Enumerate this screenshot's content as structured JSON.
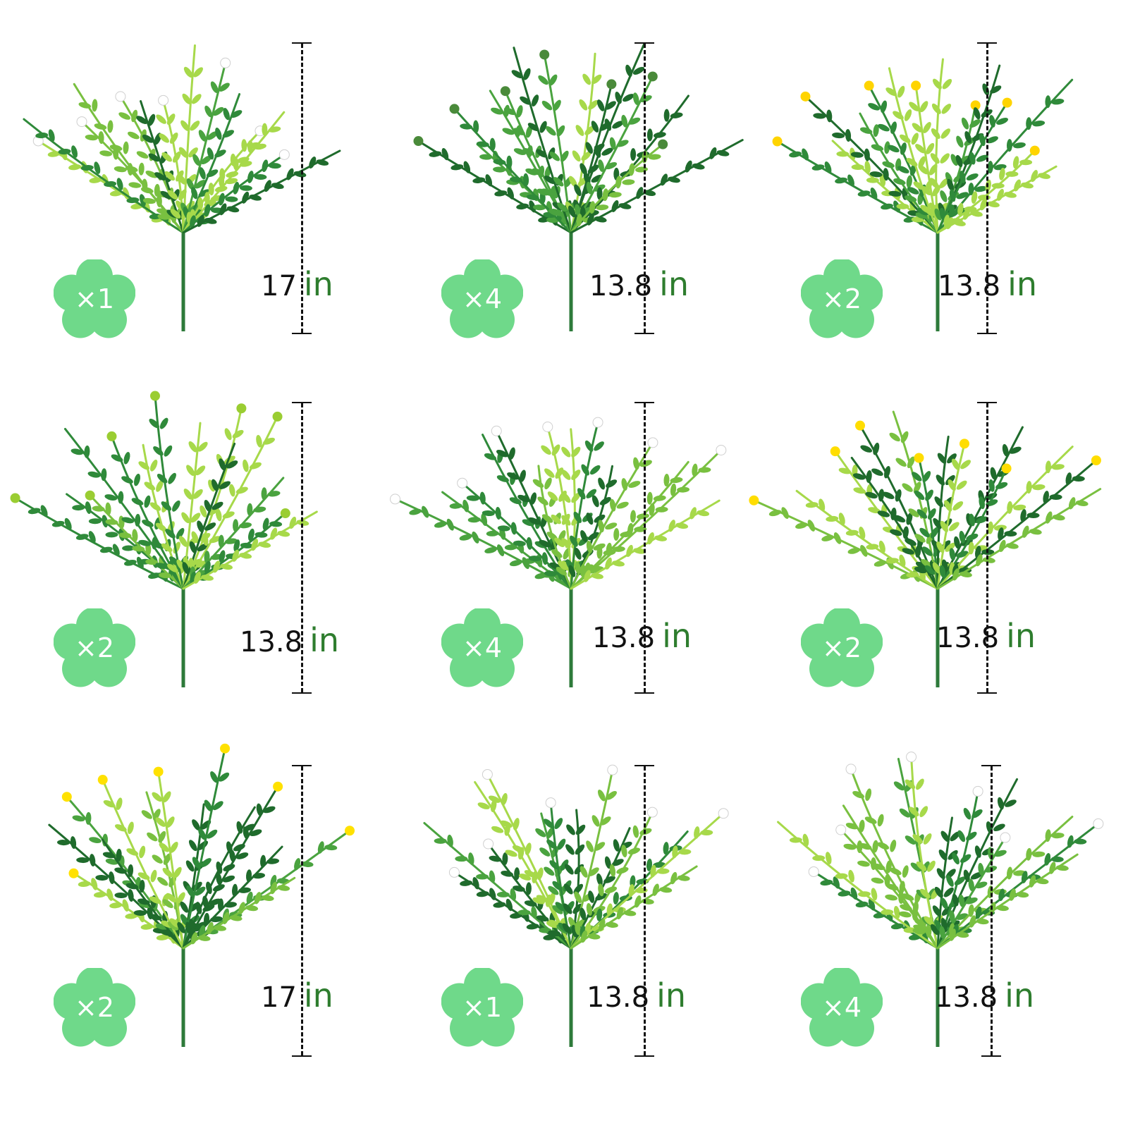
{
  "colors": {
    "badge_fill": "#6fd98a",
    "badge_text": "#ffffff",
    "unit_text": "#2e7d2e",
    "ruler": "#111111"
  },
  "items": [
    {
      "quantity": "×1",
      "height_value": "17",
      "height_unit": "in",
      "foliage": "fern-grass-white-tips",
      "flower_color": "#ffffff"
    },
    {
      "quantity": "×4",
      "height_value": "13.8",
      "height_unit": "in",
      "foliage": "grass-cattail",
      "flower_color": "#4a8a3a"
    },
    {
      "quantity": "×2",
      "height_value": "13.8",
      "height_unit": "in",
      "foliage": "grass-yellow-flowers",
      "flower_color": "#ffd400"
    },
    {
      "quantity": "×2",
      "height_value": "13.8",
      "height_unit": "in",
      "foliage": "eucalyptus",
      "flower_color": "#9acd32"
    },
    {
      "quantity": "×4",
      "height_value": "13.8",
      "height_unit": "in",
      "foliage": "boxwood-white-flowers",
      "flower_color": "#ffffff"
    },
    {
      "quantity": "×2",
      "height_value": "13.8",
      "height_unit": "in",
      "foliage": "boxwood-yellow-flowers",
      "flower_color": "#ffdd00"
    },
    {
      "quantity": "×2",
      "height_value": "17",
      "height_unit": "in",
      "foliage": "fern-grass-yellow-tips",
      "flower_color": "#ffe100"
    },
    {
      "quantity": "×1",
      "height_value": "13.8",
      "height_unit": "in",
      "foliage": "fern-grass-mix",
      "flower_color": "#ffffff"
    },
    {
      "quantity": "×4",
      "height_value": "13.8",
      "height_unit": "in",
      "foliage": "grass-white-flowers",
      "flower_color": "#ffffff"
    }
  ]
}
